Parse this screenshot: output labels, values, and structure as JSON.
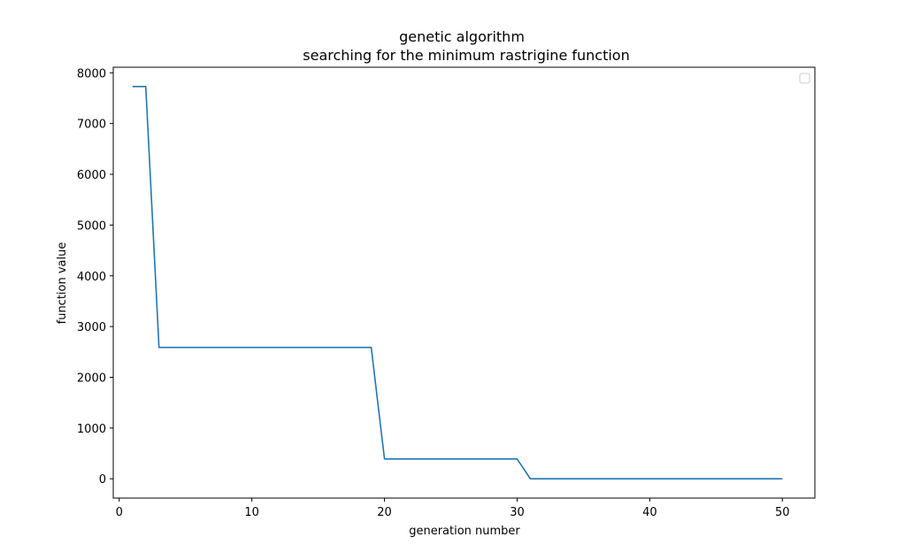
{
  "chart_data": {
    "type": "line",
    "title": "genetic algorithm",
    "subtitle": "searching for the minimum rastrigine function",
    "xlabel": "generation number",
    "ylabel": "function value",
    "xlim": [
      -0.45,
      52.45
    ],
    "ylim": [
      -380,
      8110
    ],
    "xticks": [
      0,
      10,
      20,
      30,
      40,
      50
    ],
    "yticks": [
      0,
      1000,
      2000,
      3000,
      4000,
      5000,
      6000,
      7000,
      8000
    ],
    "grid": false,
    "legend": "top-right",
    "series": [
      {
        "color": "#1f77b4",
        "x": [
          1,
          2,
          3,
          4,
          5,
          6,
          7,
          8,
          9,
          10,
          11,
          12,
          13,
          14,
          15,
          16,
          17,
          18,
          19,
          20,
          21,
          22,
          23,
          24,
          25,
          26,
          27,
          28,
          29,
          30,
          31,
          32,
          33,
          34,
          35,
          36,
          37,
          38,
          39,
          40,
          41,
          42,
          43,
          44,
          45,
          46,
          47,
          48,
          49,
          50
        ],
        "y": [
          7730,
          7730,
          2590,
          2590,
          2590,
          2590,
          2590,
          2590,
          2590,
          2590,
          2590,
          2590,
          2590,
          2590,
          2590,
          2590,
          2590,
          2590,
          2590,
          390,
          390,
          390,
          390,
          390,
          390,
          390,
          390,
          390,
          390,
          390,
          0,
          0,
          0,
          0,
          0,
          0,
          0,
          0,
          0,
          0,
          0,
          0,
          0,
          0,
          0,
          0,
          0,
          0,
          0,
          0
        ]
      }
    ]
  }
}
